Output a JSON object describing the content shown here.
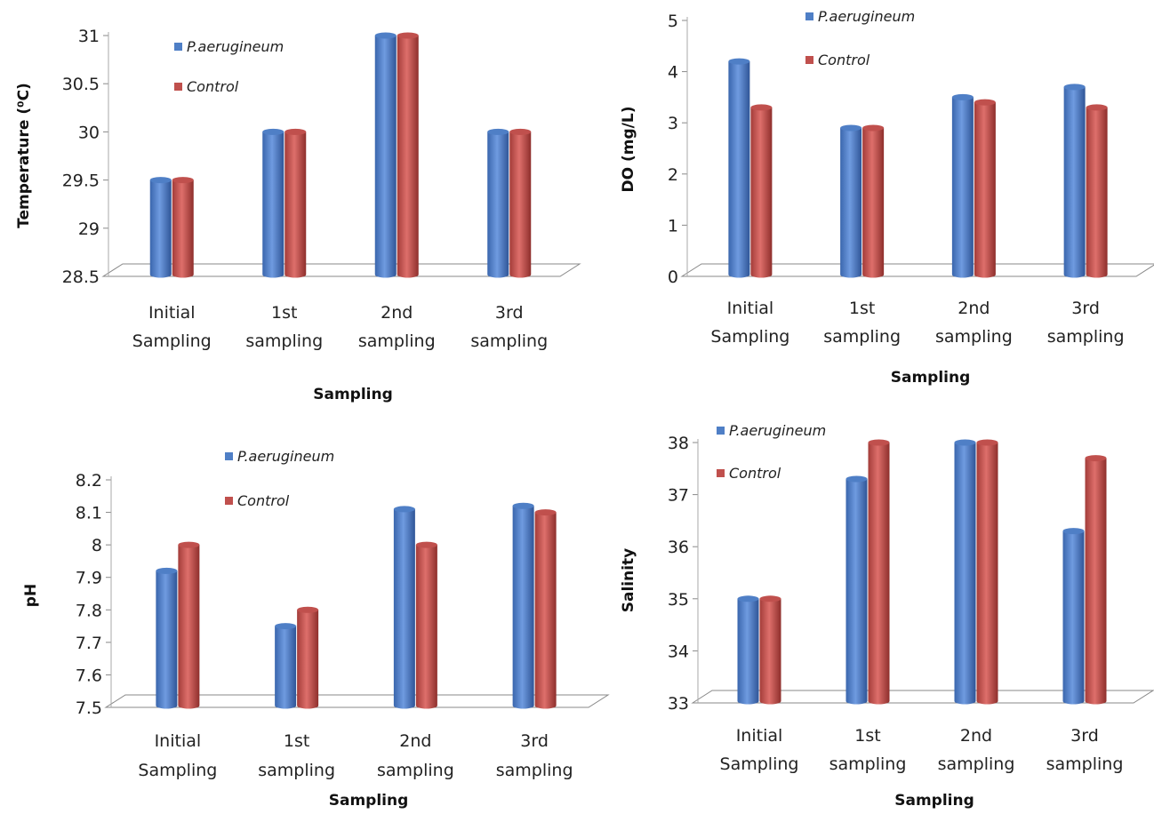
{
  "colors": {
    "p_aerugineum": "#4f7fc6",
    "control": "#c0504d"
  },
  "chart_data": [
    {
      "type": "bar",
      "xlabel": "Sampling",
      "ylabel": "Temperature (⁰C)",
      "ylim": [
        28.5,
        31
      ],
      "yticks": [
        "28.5",
        "29",
        "29.5",
        "30",
        "30.5",
        "31"
      ],
      "categories": [
        [
          "Initial",
          "Sampling"
        ],
        [
          "1st",
          "sampling"
        ],
        [
          "2nd",
          "sampling"
        ],
        [
          "3rd",
          "sampling"
        ]
      ],
      "legend_position": "top-left",
      "series": [
        {
          "name": "P.aerugineum",
          "values": [
            29.5,
            30.0,
            31.0,
            30.0
          ]
        },
        {
          "name": "Control",
          "values": [
            29.5,
            30.0,
            31.0,
            30.0
          ]
        }
      ]
    },
    {
      "type": "bar",
      "xlabel": "Sampling",
      "ylabel": "DO (mg/L)",
      "ylim": [
        0,
        5
      ],
      "yticks": [
        "0",
        "1",
        "2",
        "3",
        "4",
        "5"
      ],
      "categories": [
        [
          "Initial",
          "Sampling"
        ],
        [
          "1st",
          "sampling"
        ],
        [
          "2nd",
          "sampling"
        ],
        [
          "3rd",
          "sampling"
        ]
      ],
      "legend_position": "top-center",
      "series": [
        {
          "name": "P.aerugineum",
          "values": [
            4.2,
            2.9,
            3.5,
            3.7
          ]
        },
        {
          "name": "Control",
          "values": [
            3.3,
            2.9,
            3.4,
            3.3
          ]
        }
      ]
    },
    {
      "type": "bar",
      "xlabel": "Sampling",
      "ylabel": "pH",
      "ylim": [
        7.5,
        8.2
      ],
      "yticks": [
        "7.5",
        "7.6",
        "7.7",
        "7.8",
        "7.9",
        "8",
        "8.1",
        "8.2"
      ],
      "categories": [
        [
          "Initial",
          "Sampling"
        ],
        [
          "1st",
          "sampling"
        ],
        [
          "2nd",
          "sampling"
        ],
        [
          "3rd",
          "sampling"
        ]
      ],
      "legend_position": "top-center",
      "series": [
        {
          "name": "P.aerugineum",
          "values": [
            7.92,
            7.75,
            8.11,
            8.12
          ]
        },
        {
          "name": "Control",
          "values": [
            8.0,
            7.8,
            8.0,
            8.1
          ]
        }
      ]
    },
    {
      "type": "bar",
      "xlabel": "Sampling",
      "ylabel": "Salinity",
      "ylim": [
        33,
        38
      ],
      "yticks": [
        "33",
        "34",
        "35",
        "36",
        "37",
        "38"
      ],
      "categories": [
        [
          "Initial",
          "Sampling"
        ],
        [
          "1st",
          "sampling"
        ],
        [
          "2nd",
          "sampling"
        ],
        [
          "3rd",
          "sampling"
        ]
      ],
      "legend_position": "top-left",
      "series": [
        {
          "name": "P.aerugineum",
          "values": [
            35.0,
            37.3,
            38.0,
            36.3
          ]
        },
        {
          "name": "Control",
          "values": [
            35.0,
            38.0,
            38.0,
            37.7
          ]
        }
      ]
    }
  ]
}
